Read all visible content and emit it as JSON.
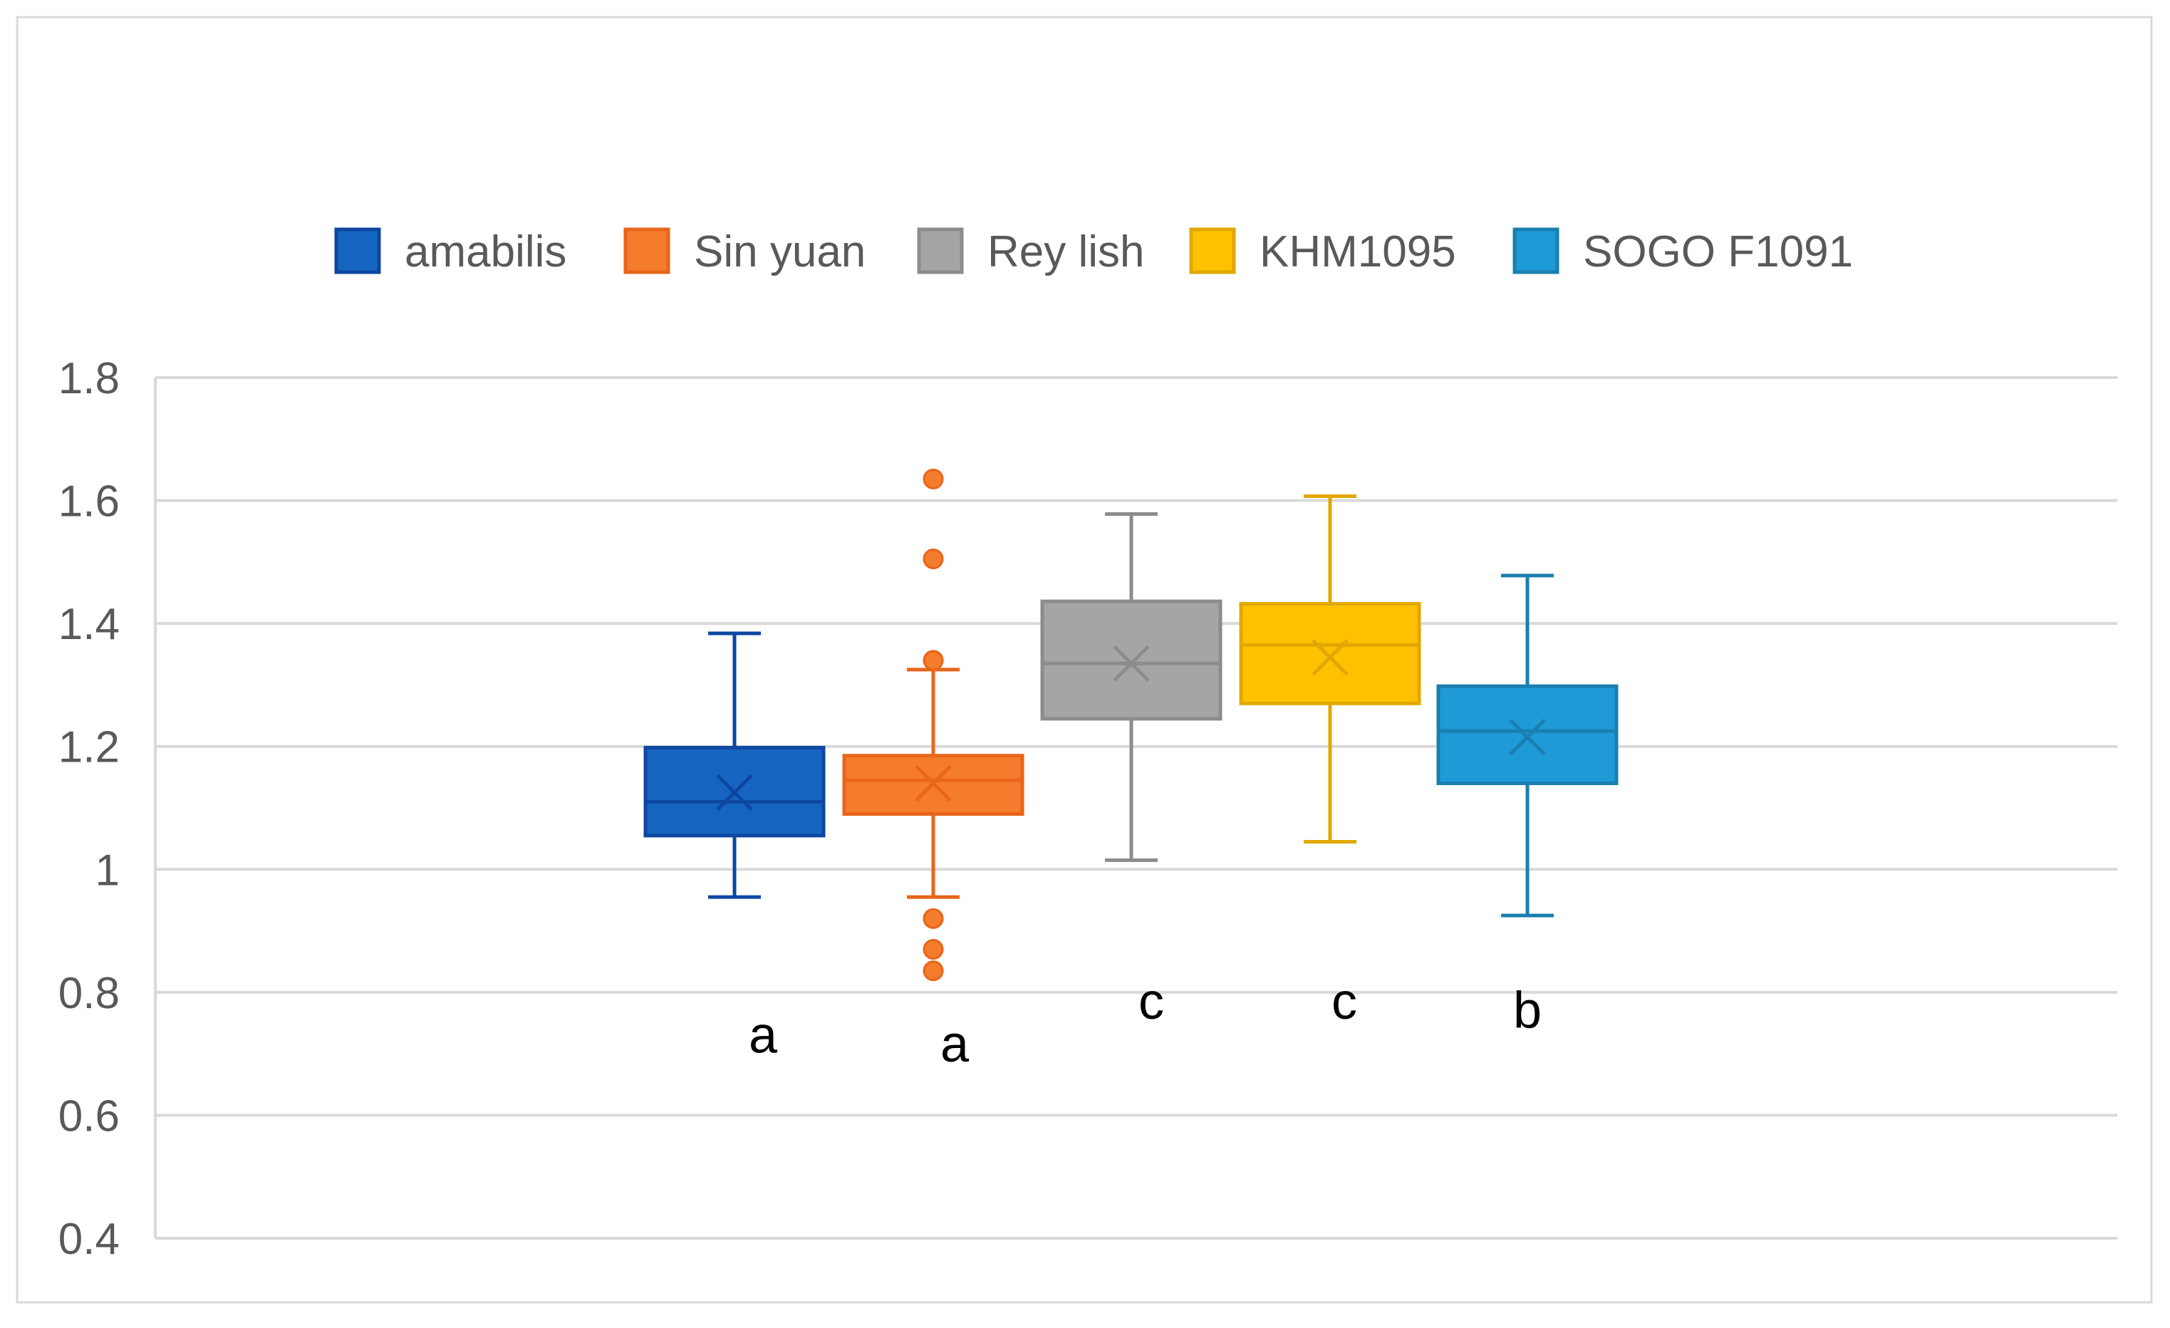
{
  "chart_data": {
    "type": "box",
    "title": "",
    "xlabel": "",
    "ylabel": "",
    "ylim": [
      0.4,
      1.8
    ],
    "yticks": [
      0.4,
      0.6,
      0.8,
      1,
      1.2,
      1.4,
      1.6,
      1.8
    ],
    "ytick_labels": [
      "0.4",
      "0.6",
      "0.8",
      "1",
      "1.2",
      "1.4",
      "1.6",
      "1.8"
    ],
    "grid": true,
    "legend_position": "top",
    "series": [
      {
        "name": "amabilis",
        "color": "#1565C0",
        "line_color": "#0D47A1",
        "min": 0.955,
        "q1": 1.055,
        "median": 1.11,
        "q3": 1.198,
        "max": 1.384,
        "mean": 1.125,
        "outliers": [],
        "letter": "a",
        "letter_y": 0.73
      },
      {
        "name": "Sin yuan",
        "color": "#F57C2C",
        "line_color": "#E8651A",
        "min": 0.955,
        "q1": 1.09,
        "median": 1.145,
        "q3": 1.185,
        "max": 1.325,
        "mean": 1.14,
        "outliers": [
          1.635,
          1.505,
          1.34,
          0.92,
          0.87,
          0.835
        ],
        "letter": "a",
        "letter_y": 0.715
      },
      {
        "name": "Rey lish",
        "color": "#A5A5A5",
        "line_color": "#8C8C8C",
        "min": 1.015,
        "q1": 1.245,
        "median": 1.335,
        "q3": 1.436,
        "max": 1.578,
        "mean": 1.335,
        "outliers": [],
        "letter": "c",
        "letter_y": 0.785
      },
      {
        "name": "KHM1095",
        "color": "#FFC000",
        "line_color": "#E0A800",
        "min": 1.045,
        "q1": 1.27,
        "median": 1.365,
        "q3": 1.432,
        "max": 1.607,
        "mean": 1.345,
        "outliers": [],
        "letter": "c",
        "letter_y": 0.785
      },
      {
        "name": "SOGO F1091",
        "color": "#1E9AD6",
        "line_color": "#1A7FB0",
        "min": 0.925,
        "q1": 1.14,
        "median": 1.225,
        "q3": 1.298,
        "max": 1.478,
        "mean": 1.215,
        "outliers": [],
        "letter": "b",
        "letter_y": 0.77
      }
    ]
  }
}
